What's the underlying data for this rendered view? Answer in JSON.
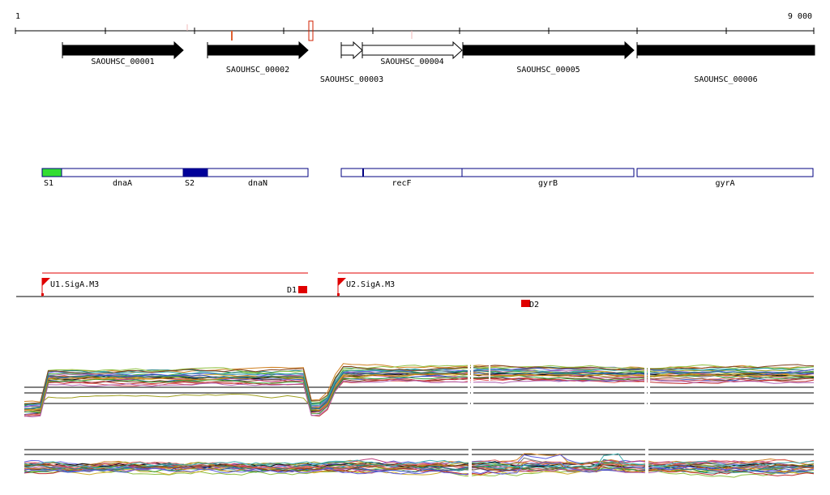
{
  "ruler": {
    "start_label": "1",
    "end_label": "9 000",
    "start": 1,
    "end": 9000
  },
  "colors": {
    "gene_fill": "#000000",
    "operon_border": "#000080",
    "promoter": "#e00000",
    "s1": "#33dd33",
    "s2": "#000099",
    "ruler_tick_red": "#e06030",
    "ruler_tick_pink": "#f0b8b8"
  },
  "genes": [
    {
      "id": "SAOUHSC_00001",
      "label": "SAOUHSC_00001",
      "filled": true
    },
    {
      "id": "SAOUHSC_00002",
      "label": "SAOUHSC_00002",
      "filled": true
    },
    {
      "id": "SAOUHSC_00003",
      "label": "SAOUHSC_00003",
      "filled": false
    },
    {
      "id": "SAOUHSC_00004",
      "label": "SAOUHSC_00004",
      "filled": false
    },
    {
      "id": "SAOUHSC_00005",
      "label": "SAOUHSC_00005",
      "filled": true
    },
    {
      "id": "SAOUHSC_00006",
      "label": "SAOUHSC_00006",
      "filled": true
    }
  ],
  "annotations": [
    {
      "id": "S1",
      "label": "S1"
    },
    {
      "id": "dnaA",
      "label": "dnaA"
    },
    {
      "id": "S2",
      "label": "S2"
    },
    {
      "id": "dnaN",
      "label": "dnaN"
    },
    {
      "id": "recF",
      "label": "recF"
    },
    {
      "id": "gyrB",
      "label": "gyrB"
    },
    {
      "id": "gyrA",
      "label": "gyrA"
    }
  ],
  "transcription_units": [
    {
      "id": "U1",
      "label": "U1.SigA.M3"
    },
    {
      "id": "U2",
      "label": "U2.SigA.M3"
    }
  ],
  "downshifts": [
    {
      "id": "D1",
      "label": "D1"
    },
    {
      "id": "D2",
      "label": "D2"
    }
  ],
  "tracks": [
    {
      "id": "expression-profiles-upper"
    },
    {
      "id": "expression-profiles-lower"
    }
  ]
}
